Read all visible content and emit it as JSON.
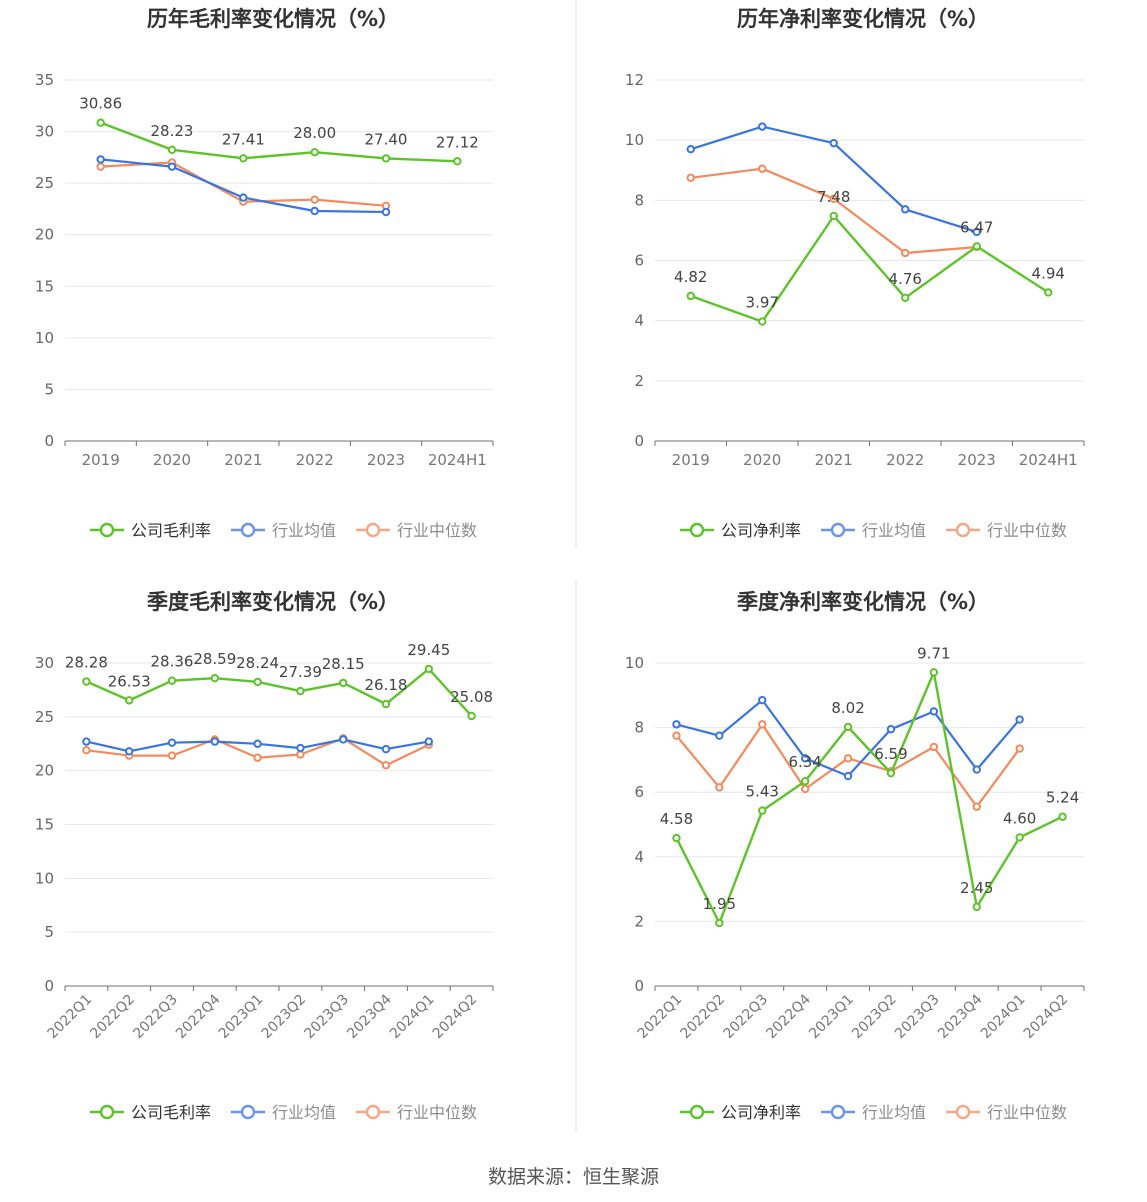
{
  "source_text": "数据来源：恒生聚源",
  "colors": {
    "company": "#5ec32a",
    "avg": "#3a74e0",
    "median": "#f28a5e"
  },
  "chart_data": [
    {
      "type": "line",
      "title": "历年毛利率变化情况（%）",
      "categories": [
        "2019",
        "2020",
        "2021",
        "2022",
        "2023",
        "2024H1"
      ],
      "ylim": [
        0,
        35
      ],
      "yticks": [
        0,
        5,
        10,
        15,
        20,
        25,
        30,
        35
      ],
      "grid": true,
      "legend_position": "bottom",
      "series": [
        {
          "name": "公司毛利率",
          "key": "company",
          "values": [
            30.86,
            28.23,
            27.41,
            28.0,
            27.4,
            27.12
          ],
          "labels": [
            "30.86",
            "28.23",
            "27.41",
            "28.00",
            "27.40",
            "27.12"
          ]
        },
        {
          "name": "行业均值",
          "key": "avg",
          "values": [
            27.3,
            26.6,
            23.6,
            22.3,
            22.2,
            null
          ]
        },
        {
          "name": "行业中位数",
          "key": "median",
          "values": [
            26.6,
            27.0,
            23.2,
            23.4,
            22.8,
            null
          ]
        }
      ]
    },
    {
      "type": "line",
      "title": "历年净利率变化情况（%）",
      "categories": [
        "2019",
        "2020",
        "2021",
        "2022",
        "2023",
        "2024H1"
      ],
      "ylim": [
        0,
        12
      ],
      "yticks": [
        0,
        2,
        4,
        6,
        8,
        10,
        12
      ],
      "grid": true,
      "legend_position": "bottom",
      "series": [
        {
          "name": "公司净利率",
          "key": "company",
          "values": [
            4.82,
            3.97,
            7.48,
            4.76,
            6.47,
            4.94
          ],
          "labels": [
            "4.82",
            "3.97",
            "7.48",
            "4.76",
            "6.47",
            "4.94"
          ]
        },
        {
          "name": "行业均值",
          "key": "avg",
          "values": [
            9.7,
            10.45,
            9.9,
            7.7,
            6.95,
            null
          ]
        },
        {
          "name": "行业中位数",
          "key": "median",
          "values": [
            8.75,
            9.05,
            8.05,
            6.25,
            6.45,
            null
          ]
        }
      ]
    },
    {
      "type": "line",
      "title": "季度毛利率变化情况（%）",
      "categories": [
        "2022Q1",
        "2022Q2",
        "2022Q3",
        "2022Q4",
        "2023Q1",
        "2023Q2",
        "2023Q3",
        "2023Q4",
        "2024Q1",
        "2024Q2"
      ],
      "ylim": [
        0,
        30
      ],
      "yticks": [
        0,
        5,
        10,
        15,
        20,
        25,
        30
      ],
      "grid": true,
      "legend_position": "bottom",
      "series": [
        {
          "name": "公司毛利率",
          "key": "company",
          "values": [
            28.28,
            26.53,
            28.36,
            28.59,
            28.24,
            27.39,
            28.15,
            26.18,
            29.45,
            25.08
          ],
          "labels": [
            "28.28",
            "26.53",
            "28.36",
            "28.59",
            "28.24",
            "27.39",
            "28.15",
            "26.18",
            "29.45",
            "25.08"
          ]
        },
        {
          "name": "行业均值",
          "key": "avg",
          "values": [
            22.7,
            21.8,
            22.6,
            22.7,
            22.5,
            22.1,
            22.9,
            22.0,
            22.7,
            null
          ]
        },
        {
          "name": "行业中位数",
          "key": "median",
          "values": [
            21.9,
            21.4,
            21.4,
            22.9,
            21.2,
            21.5,
            23.0,
            20.5,
            22.4,
            null
          ]
        }
      ]
    },
    {
      "type": "line",
      "title": "季度净利率变化情况（%）",
      "categories": [
        "2022Q1",
        "2022Q2",
        "2022Q3",
        "2022Q4",
        "2023Q1",
        "2023Q2",
        "2023Q3",
        "2023Q4",
        "2024Q1",
        "2024Q2"
      ],
      "ylim": [
        0,
        10
      ],
      "yticks": [
        0,
        2,
        4,
        6,
        8,
        10
      ],
      "grid": true,
      "legend_position": "bottom",
      "series": [
        {
          "name": "公司净利率",
          "key": "company",
          "values": [
            4.58,
            1.95,
            5.43,
            6.34,
            8.02,
            6.59,
            9.71,
            2.45,
            4.6,
            5.24
          ],
          "labels": [
            "4.58",
            "1.95",
            "5.43",
            "6.34",
            "8.02",
            "6.59",
            "9.71",
            "2.45",
            "4.60",
            "5.24"
          ]
        },
        {
          "name": "行业均值",
          "key": "avg",
          "values": [
            8.1,
            7.75,
            8.85,
            7.05,
            6.5,
            7.95,
            8.5,
            6.7,
            8.25,
            null
          ]
        },
        {
          "name": "行业中位数",
          "key": "median",
          "values": [
            7.75,
            6.15,
            8.1,
            6.1,
            7.05,
            6.65,
            7.4,
            5.55,
            7.35,
            null
          ]
        }
      ]
    }
  ]
}
